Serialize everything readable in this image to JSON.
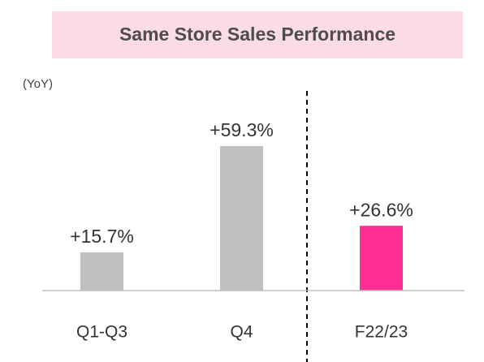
{
  "chart_data": {
    "type": "bar",
    "title": "Same Store Sales Performance",
    "subtitle": "(YoY)",
    "categories": [
      "Q1-Q3",
      "Q4",
      "F22/23"
    ],
    "values": [
      15.7,
      59.3,
      26.6
    ],
    "value_labels": [
      "+15.7%",
      "+59.3%",
      "+26.6%"
    ],
    "colors": [
      "#bfbfbf",
      "#bfbfbf",
      "#ff2e93"
    ]
  }
}
